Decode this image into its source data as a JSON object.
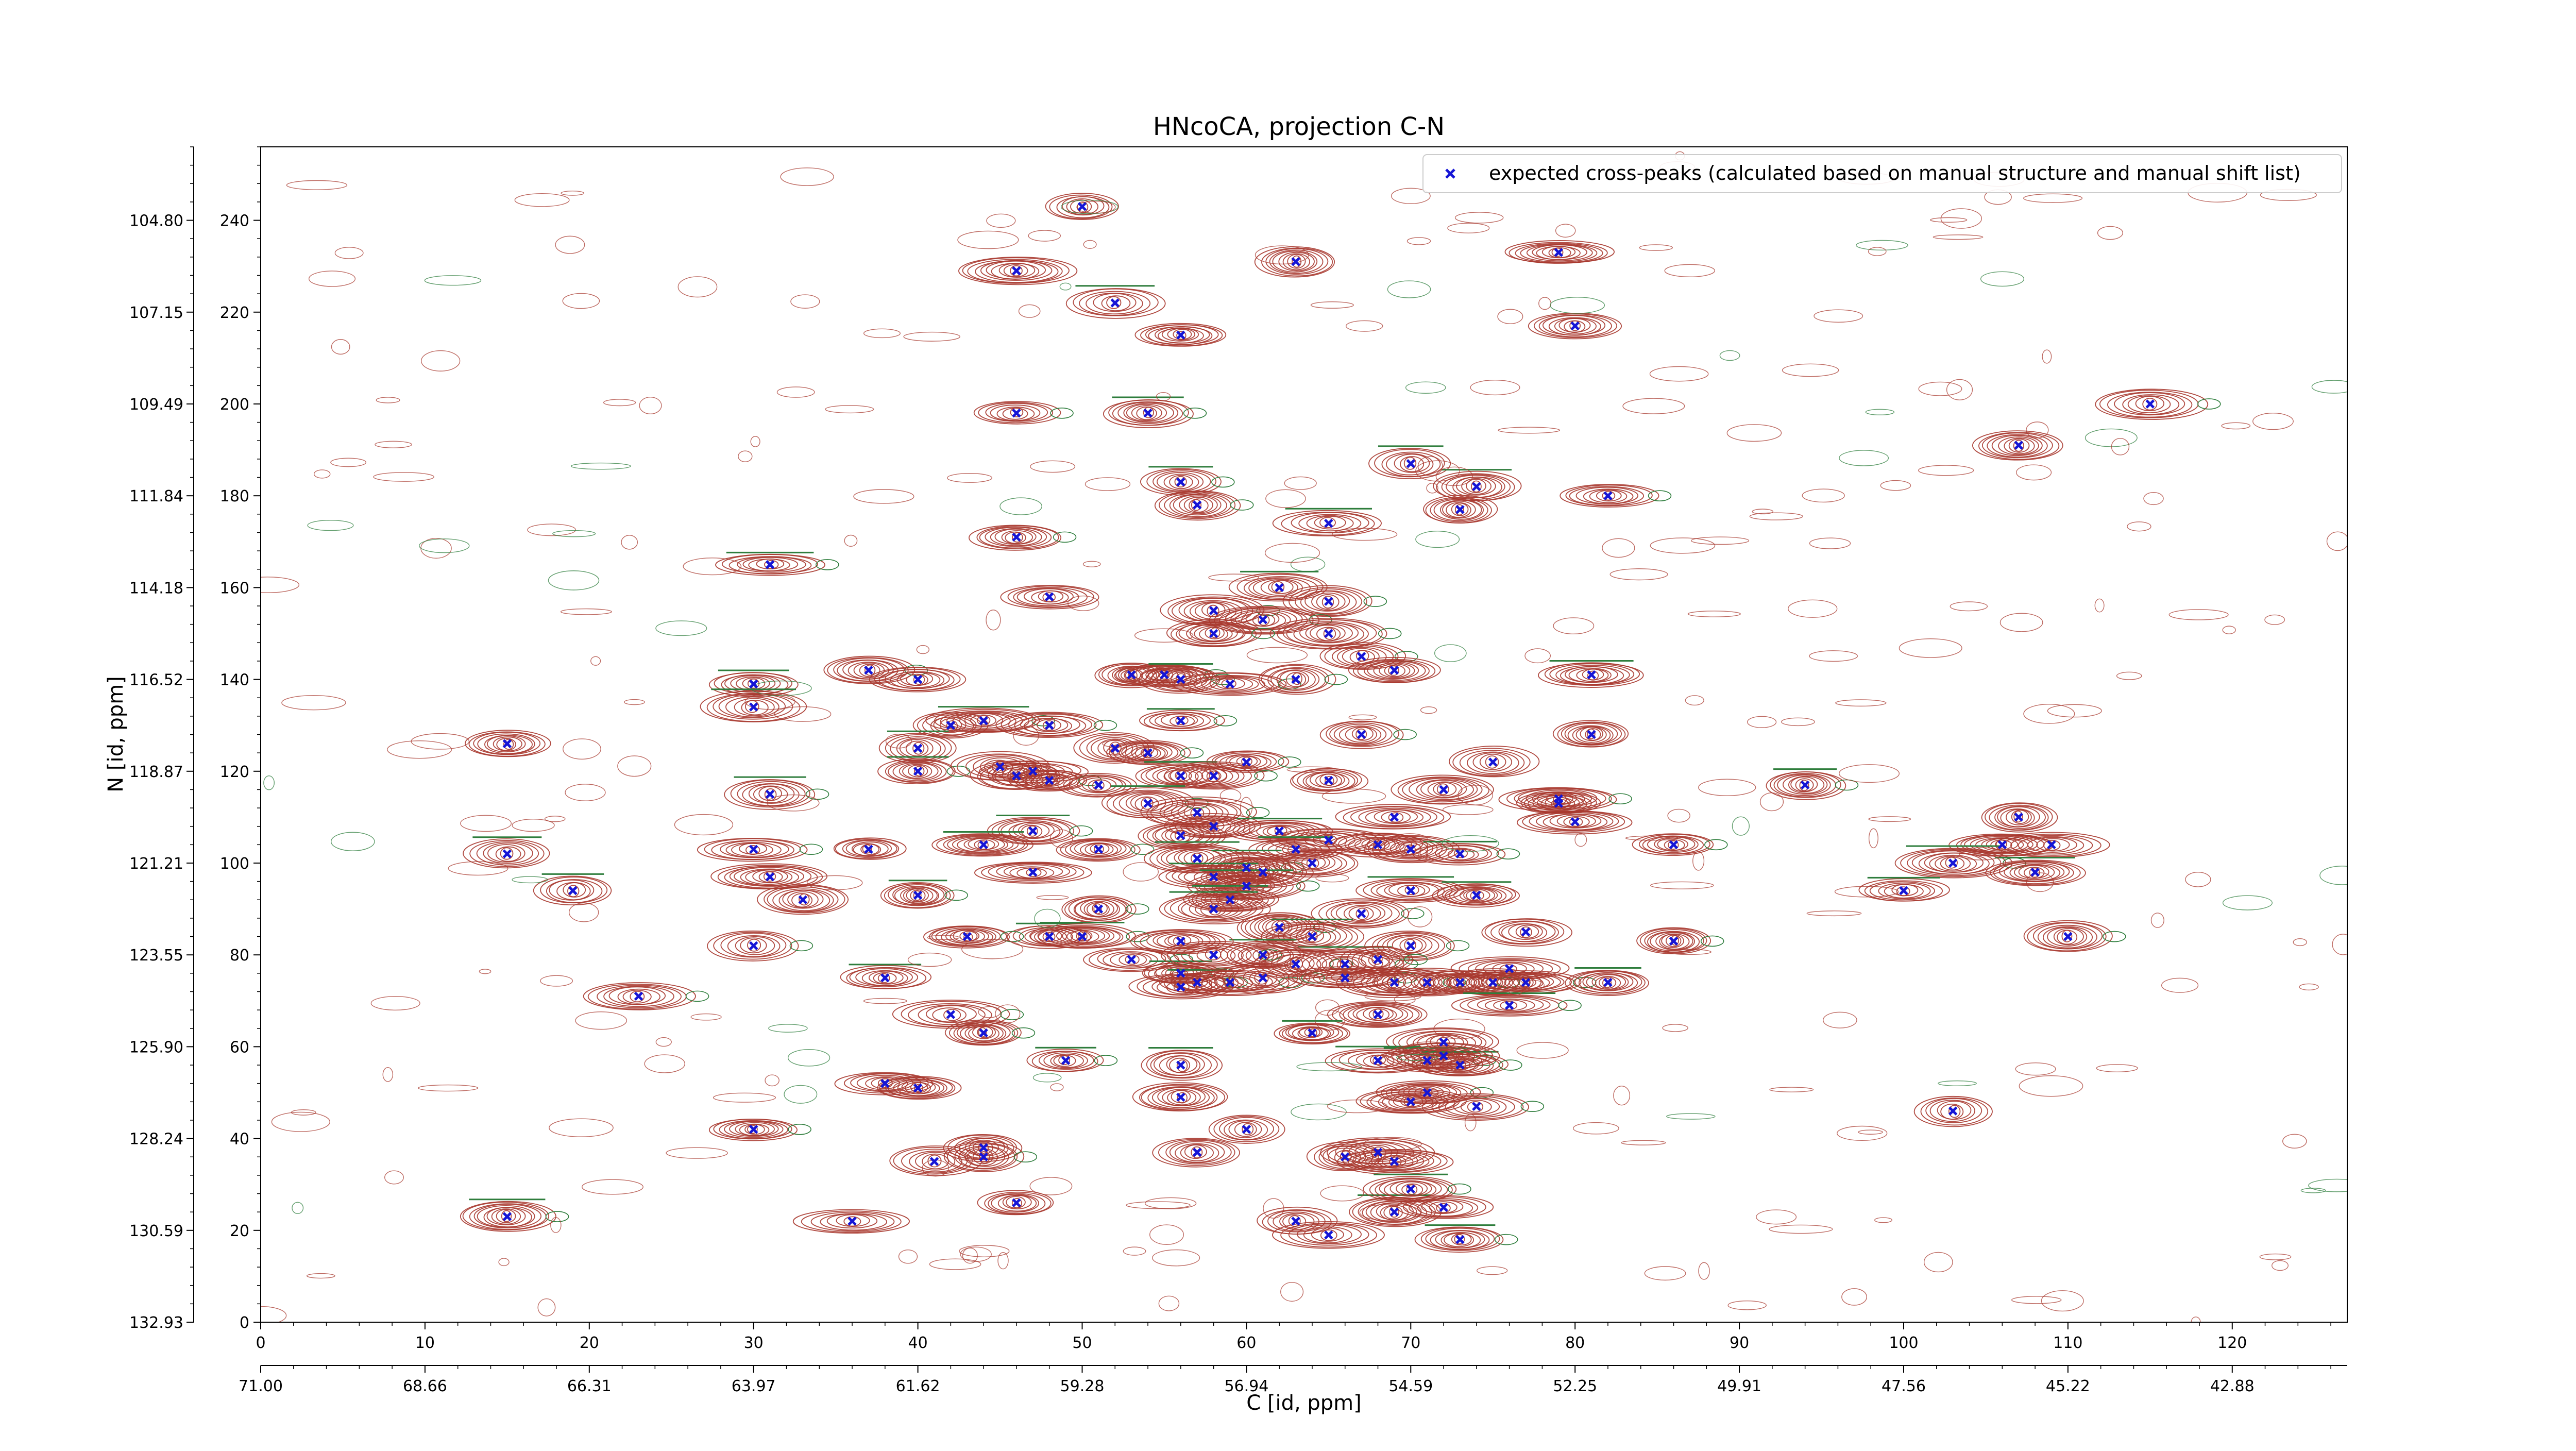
{
  "colors": {
    "peak_marker": "#1515d6",
    "contour_positive": "#a8392f",
    "contour_negative": "#2e7d3c",
    "axis": "#000000",
    "background": "#ffffff"
  },
  "chart_data": {
    "type": "scatter",
    "title": "HNcoCA, projection C-N",
    "xlabel": "C [id, ppm]",
    "ylabel": "N [id, ppm]",
    "xlim": [
      0,
      127
    ],
    "ylim": [
      0,
      256
    ],
    "grid": false,
    "legend_position": "top-right",
    "x_ticks": [
      0,
      10,
      20,
      30,
      40,
      50,
      60,
      70,
      80,
      90,
      100,
      110,
      120
    ],
    "y_ticks": [
      0,
      20,
      40,
      60,
      80,
      100,
      120,
      140,
      160,
      180,
      200,
      220,
      240
    ],
    "x_ppm_ticks": [
      "71.00",
      "68.66",
      "66.31",
      "63.97",
      "61.62",
      "59.28",
      "56.94",
      "54.59",
      "52.25",
      "49.91",
      "47.56",
      "45.22",
      "42.88"
    ],
    "y_ppm_ticks": [
      "132.93",
      "130.59",
      "128.24",
      "125.90",
      "123.55",
      "121.21",
      "118.87",
      "116.52",
      "114.18",
      "111.84",
      "109.49",
      "107.15",
      "104.80"
    ],
    "series": [
      {
        "name": "expected cross-peaks (calculated based on manual structure and manual shift list)",
        "points": [
          [
            50,
            243
          ],
          [
            46,
            229
          ],
          [
            63,
            231
          ],
          [
            79,
            233
          ],
          [
            52,
            222
          ],
          [
            56,
            215
          ],
          [
            80,
            217
          ],
          [
            46,
            198
          ],
          [
            54,
            198
          ],
          [
            115,
            200
          ],
          [
            107,
            191
          ],
          [
            56,
            183
          ],
          [
            70,
            187
          ],
          [
            74,
            182
          ],
          [
            82,
            180
          ],
          [
            57,
            178
          ],
          [
            73,
            177
          ],
          [
            65,
            174
          ],
          [
            46,
            171
          ],
          [
            31,
            165
          ],
          [
            48,
            158
          ],
          [
            62,
            160
          ],
          [
            65,
            157
          ],
          [
            58,
            155
          ],
          [
            61,
            153
          ],
          [
            58,
            150
          ],
          [
            65,
            150
          ],
          [
            67,
            145
          ],
          [
            37,
            142
          ],
          [
            40,
            140
          ],
          [
            53,
            141
          ],
          [
            55,
            141
          ],
          [
            56,
            140
          ],
          [
            59,
            139
          ],
          [
            63,
            140
          ],
          [
            69,
            142
          ],
          [
            81,
            141
          ],
          [
            30,
            139
          ],
          [
            30,
            134
          ],
          [
            15,
            126
          ],
          [
            42,
            130
          ],
          [
            44,
            131
          ],
          [
            48,
            130
          ],
          [
            56,
            131
          ],
          [
            67,
            128
          ],
          [
            81,
            128
          ],
          [
            40,
            125
          ],
          [
            52,
            125
          ],
          [
            54,
            124
          ],
          [
            60,
            122
          ],
          [
            75,
            122
          ],
          [
            40,
            120
          ],
          [
            45,
            121
          ],
          [
            47,
            120
          ],
          [
            46,
            119
          ],
          [
            48,
            118
          ],
          [
            51,
            117
          ],
          [
            56,
            119
          ],
          [
            58,
            119
          ],
          [
            79,
            114
          ],
          [
            79,
            113
          ],
          [
            94,
            117
          ],
          [
            31,
            115
          ],
          [
            65,
            118
          ],
          [
            72,
            116
          ],
          [
            54,
            113
          ],
          [
            57,
            111
          ],
          [
            58,
            108
          ],
          [
            69,
            110
          ],
          [
            80,
            109
          ],
          [
            47,
            107
          ],
          [
            51,
            103
          ],
          [
            56,
            106
          ],
          [
            62,
            107
          ],
          [
            65,
            105
          ],
          [
            63,
            103
          ],
          [
            68,
            104
          ],
          [
            70,
            103
          ],
          [
            73,
            102
          ],
          [
            44,
            104
          ],
          [
            37,
            103
          ],
          [
            30,
            103
          ],
          [
            15,
            102
          ],
          [
            86,
            104
          ],
          [
            107,
            110
          ],
          [
            106,
            104
          ],
          [
            109,
            104
          ],
          [
            103,
            100
          ],
          [
            108,
            98
          ],
          [
            100,
            94
          ],
          [
            31,
            97
          ],
          [
            33,
            92
          ],
          [
            19,
            94
          ],
          [
            40,
            93
          ],
          [
            47,
            98
          ],
          [
            57,
            101
          ],
          [
            60,
            99
          ],
          [
            61,
            98
          ],
          [
            58,
            97
          ],
          [
            64,
            100
          ],
          [
            60,
            95
          ],
          [
            59,
            92
          ],
          [
            58,
            90
          ],
          [
            51,
            90
          ],
          [
            70,
            94
          ],
          [
            74,
            93
          ],
          [
            67,
            89
          ],
          [
            62,
            86
          ],
          [
            64,
            84
          ],
          [
            61,
            80
          ],
          [
            48,
            84
          ],
          [
            43,
            84
          ],
          [
            50,
            84
          ],
          [
            56,
            83
          ],
          [
            70,
            82
          ],
          [
            77,
            85
          ],
          [
            86,
            83
          ],
          [
            110,
            84
          ],
          [
            30,
            82
          ],
          [
            53,
            79
          ],
          [
            56,
            76
          ],
          [
            57,
            74
          ],
          [
            58,
            80
          ],
          [
            63,
            78
          ],
          [
            66,
            78
          ],
          [
            68,
            79
          ],
          [
            76,
            77
          ],
          [
            38,
            75
          ],
          [
            23,
            71
          ],
          [
            56,
            73
          ],
          [
            59,
            74
          ],
          [
            61,
            75
          ],
          [
            66,
            75
          ],
          [
            69,
            74
          ],
          [
            71,
            74
          ],
          [
            73,
            74
          ],
          [
            75,
            74
          ],
          [
            77,
            74
          ],
          [
            82,
            74
          ],
          [
            76,
            69
          ],
          [
            68,
            67
          ],
          [
            42,
            67
          ],
          [
            44,
            63
          ],
          [
            64,
            63
          ],
          [
            72,
            61
          ],
          [
            68,
            57
          ],
          [
            71,
            57
          ],
          [
            73,
            56
          ],
          [
            72,
            58
          ],
          [
            49,
            57
          ],
          [
            56,
            56
          ],
          [
            38,
            52
          ],
          [
            40,
            51
          ],
          [
            56,
            49
          ],
          [
            70,
            48
          ],
          [
            71,
            50
          ],
          [
            74,
            47
          ],
          [
            103,
            46
          ],
          [
            60,
            42
          ],
          [
            30,
            42
          ],
          [
            44,
            38
          ],
          [
            44,
            36
          ],
          [
            41,
            35
          ],
          [
            57,
            37
          ],
          [
            66,
            36
          ],
          [
            68,
            37
          ],
          [
            69,
            35
          ],
          [
            46,
            26
          ],
          [
            36,
            22
          ],
          [
            15,
            23
          ],
          [
            63,
            22
          ],
          [
            65,
            19
          ],
          [
            69,
            24
          ],
          [
            70,
            29
          ],
          [
            72,
            25
          ],
          [
            73,
            18
          ]
        ]
      }
    ]
  }
}
